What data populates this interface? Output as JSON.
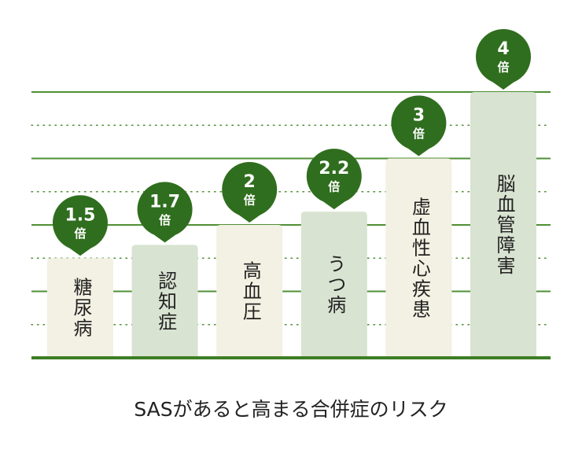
{
  "chart_data": {
    "type": "bar",
    "title": "SASがあると高まる合併症のリスク",
    "categories": [
      "糖尿病",
      "認知症",
      "高血圧",
      "うつ病",
      "虚血性心疾患",
      "脳血管障害"
    ],
    "values": [
      1.5,
      1.7,
      2,
      2.2,
      3,
      4
    ],
    "value_unit": "倍",
    "colors": [
      "#f3f1e3",
      "#d8e3d1",
      "#f3f1e3",
      "#d8e3d1",
      "#f3f1e3",
      "#d8e3d1"
    ],
    "label_color": "#2f6e1e",
    "grid_color": "#4f8f34",
    "ylim": [
      0,
      4
    ],
    "yticks": [
      1,
      2,
      3,
      4
    ],
    "yminorticks": [
      0.5,
      1.5,
      2.5,
      3.5
    ],
    "grid": true
  }
}
